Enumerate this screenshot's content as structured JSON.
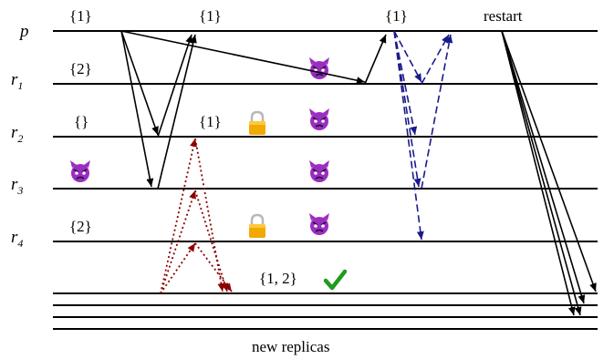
{
  "processes": [
    {
      "symbol": "p",
      "subscript": ""
    },
    {
      "symbol": "r",
      "subscript": "1"
    },
    {
      "symbol": "r",
      "subscript": "2"
    },
    {
      "symbol": "r",
      "subscript": "3"
    },
    {
      "symbol": "r",
      "subscript": "4"
    }
  ],
  "annotations": {
    "p_set_a": "{1}",
    "p_set_b": "{1}",
    "p_set_c": "{1}",
    "p_restart": "restart",
    "r1_set": "{2}",
    "r2_set": "{}",
    "r2_set_b": "{1}",
    "r4_set": "{2}",
    "new_set": "{1, 2}",
    "new_replicas": "new replicas"
  },
  "icons": {
    "lock": "lock-icon",
    "devil": "devil-icon",
    "check": "checkmark-icon"
  },
  "colors": {
    "line": "#000000",
    "dashed_blue": "#1a1a8c",
    "dotted_red": "#8b0000",
    "lock_body": "#f2a900",
    "lock_shackle": "#b8b8b8",
    "devil": "#9b2dc2",
    "check": "#1e9c1e"
  }
}
